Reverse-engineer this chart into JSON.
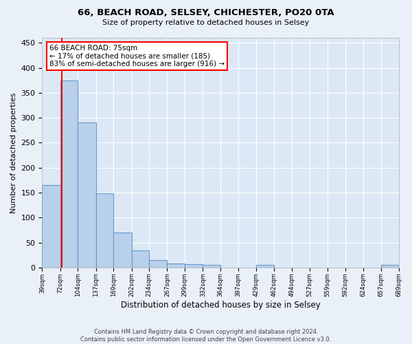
{
  "title1": "66, BEACH ROAD, SELSEY, CHICHESTER, PO20 0TA",
  "title2": "Size of property relative to detached houses in Selsey",
  "xlabel": "Distribution of detached houses by size in Selsey",
  "ylabel": "Number of detached properties",
  "bar_edges": [
    39,
    72,
    104,
    137,
    169,
    202,
    234,
    267,
    299,
    332,
    364,
    397,
    429,
    462,
    494,
    527,
    559,
    592,
    624,
    657,
    689
  ],
  "bar_heights": [
    165,
    375,
    290,
    148,
    70,
    35,
    15,
    8,
    7,
    5,
    0,
    0,
    5,
    0,
    0,
    0,
    0,
    0,
    0,
    5
  ],
  "bar_color": "#b8d0ea",
  "bar_edge_color": "#6699cc",
  "property_line_x": 75,
  "annotation_line1": "66 BEACH ROAD: 75sqm",
  "annotation_line2": "← 17% of detached houses are smaller (185)",
  "annotation_line3": "83% of semi-detached houses are larger (916) →",
  "annotation_box_color": "white",
  "annotation_box_edge_color": "red",
  "property_line_color": "red",
  "background_color": "#eaf0f8",
  "plot_bg_color": "#dce8f5",
  "grid_color": "white",
  "footer_text": "Contains HM Land Registry data © Crown copyright and database right 2024.\nContains public sector information licensed under the Open Government Licence v3.0.",
  "ylim": [
    0,
    460
  ],
  "yticks": [
    0,
    50,
    100,
    150,
    200,
    250,
    300,
    350,
    400,
    450
  ]
}
